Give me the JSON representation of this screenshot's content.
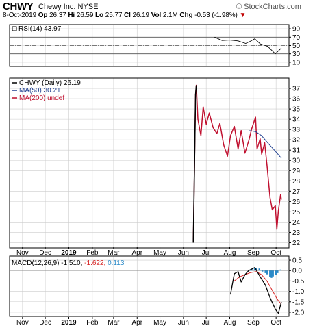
{
  "header": {
    "ticker": "CHWY",
    "name": "Chewy Inc.",
    "exchange": "NYSE",
    "brand": "© StockCharts.com",
    "date": "8-Oct-2019",
    "op_label": "Op",
    "op": "26.37",
    "hi_label": "Hi",
    "hi": "26.59",
    "lo_label": "Lo",
    "lo": "25.77",
    "cl_label": "Cl",
    "cl": "26.19",
    "vol_label": "Vol",
    "vol": "2.1M",
    "chg_label": "Chg",
    "chg": "-0.53 (-1.98%)"
  },
  "colors": {
    "price": "#000000",
    "ma50": "#1f3f8f",
    "ma200": "#c0102f",
    "signal": "#d62020",
    "hist": "#2a8ac8",
    "grid": "#cccccc"
  },
  "chart_data": [
    {
      "type": "line",
      "panel": "rsi",
      "legend": "RSI(14) 43.97",
      "ylim": [
        0,
        100
      ],
      "ticks": [
        90,
        70,
        50,
        30,
        10
      ],
      "reference_lines": [
        70,
        50,
        30
      ],
      "series": [
        {
          "name": "RSI(14)",
          "x": [
            "2019-07-12",
            "2019-07-22",
            "2019-08-01",
            "2019-08-12",
            "2019-08-22",
            "2019-08-28",
            "2019-09-03",
            "2019-09-10",
            "2019-09-20",
            "2019-09-30",
            "2019-10-08"
          ],
          "values": [
            70,
            62,
            63,
            61,
            55,
            60,
            66,
            54,
            48,
            30,
            43.97
          ]
        }
      ]
    },
    {
      "type": "line",
      "panel": "price",
      "legend": [
        "CHWY (Daily) 26.19",
        "MA(50) 30.21",
        "MA(200) undef"
      ],
      "ylim": [
        21.5,
        38
      ],
      "ticks": [
        37,
        36,
        35,
        34,
        33,
        32,
        31,
        30,
        29,
        28,
        27,
        26,
        25,
        24,
        23,
        22
      ],
      "x_ticks": [
        "Nov",
        "Dec",
        "2019",
        "Feb",
        "Mar",
        "Apr",
        "May",
        "Jun",
        "Jul",
        "Aug",
        "Sep",
        "Oct"
      ],
      "series": [
        {
          "name": "CHWY (Daily)",
          "x": [
            "2019-06-14",
            "2019-06-17",
            "2019-06-18",
            "2019-06-20",
            "2019-06-24",
            "2019-06-27",
            "2019-07-01",
            "2019-07-05",
            "2019-07-10",
            "2019-07-15",
            "2019-07-19",
            "2019-07-24",
            "2019-07-29",
            "2019-08-02",
            "2019-08-07",
            "2019-08-12",
            "2019-08-16",
            "2019-08-21",
            "2019-08-26",
            "2019-08-30",
            "2019-09-04",
            "2019-09-06",
            "2019-09-10",
            "2019-09-12",
            "2019-09-16",
            "2019-09-19",
            "2019-09-23",
            "2019-09-26",
            "2019-09-30",
            "2019-10-02",
            "2019-10-04",
            "2019-10-07",
            "2019-10-08"
          ],
          "values": [
            22.0,
            36.4,
            37.3,
            34.0,
            32.4,
            35.2,
            33.5,
            34.6,
            33.2,
            32.6,
            33.6,
            31.5,
            30.4,
            32.4,
            33.3,
            31.1,
            32.9,
            30.7,
            31.9,
            33.1,
            34.2,
            31.1,
            32.1,
            30.6,
            31.7,
            29.6,
            26.4,
            25.2,
            25.6,
            23.3,
            25.1,
            26.7,
            26.19
          ]
        },
        {
          "name": "MA(50)",
          "x": [
            "2019-08-27",
            "2019-09-04",
            "2019-09-12",
            "2019-09-20",
            "2019-09-30",
            "2019-10-08"
          ],
          "values": [
            32.9,
            32.8,
            32.4,
            31.7,
            30.9,
            30.21
          ]
        }
      ]
    },
    {
      "type": "line",
      "panel": "macd",
      "legend": "MACD(12,26,9) -1.510, -1.622, 0.113",
      "ylim": [
        -2.2,
        0.7
      ],
      "ticks": [
        0.5,
        0.0,
        -0.5,
        -1.0,
        -1.5,
        -2.0
      ],
      "x_ticks": [
        "Nov",
        "Dec",
        "2019",
        "Feb",
        "Mar",
        "Apr",
        "May",
        "Jun",
        "Jul",
        "Aug",
        "Sep",
        "Oct"
      ],
      "series": [
        {
          "name": "MACD",
          "x": [
            "2019-08-02",
            "2019-08-07",
            "2019-08-12",
            "2019-08-16",
            "2019-08-21",
            "2019-08-26",
            "2019-09-03",
            "2019-09-10",
            "2019-09-17",
            "2019-09-23",
            "2019-09-30",
            "2019-10-04",
            "2019-10-08"
          ],
          "values": [
            -1.15,
            -0.15,
            -0.05,
            -0.55,
            -0.2,
            0.0,
            0.15,
            -0.3,
            -0.7,
            -1.3,
            -1.85,
            -2.05,
            -1.51
          ]
        },
        {
          "name": "Signal",
          "x": [
            "2019-08-07",
            "2019-08-14",
            "2019-08-21",
            "2019-08-28",
            "2019-09-05",
            "2019-09-12",
            "2019-09-19",
            "2019-09-26",
            "2019-10-03",
            "2019-10-08"
          ],
          "values": [
            -0.5,
            -0.3,
            -0.2,
            -0.1,
            -0.05,
            -0.2,
            -0.5,
            -0.95,
            -1.4,
            -1.62
          ]
        },
        {
          "name": "Histogram",
          "x": [
            "2019-08-28",
            "2019-08-30",
            "2019-09-03",
            "2019-09-05",
            "2019-09-09",
            "2019-09-11",
            "2019-09-13",
            "2019-09-17",
            "2019-09-19",
            "2019-09-23",
            "2019-09-25",
            "2019-09-27",
            "2019-10-01",
            "2019-10-03",
            "2019-10-07"
          ],
          "values": [
            0.02,
            0.06,
            0.12,
            0.14,
            0.1,
            0.03,
            -0.05,
            -0.12,
            -0.18,
            -0.3,
            -0.35,
            -0.28,
            -0.2,
            -0.12,
            0.05
          ]
        }
      ]
    }
  ]
}
